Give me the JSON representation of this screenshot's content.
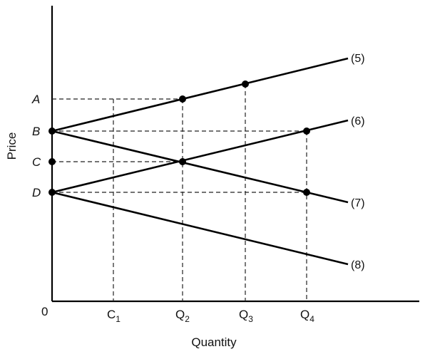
{
  "axes": {
    "x_title": "Quantity",
    "y_title": "Price",
    "origin": "0"
  },
  "price_levels": [
    {
      "id": "A",
      "label": "A"
    },
    {
      "id": "B",
      "label": "B"
    },
    {
      "id": "C",
      "label": "C"
    },
    {
      "id": "D",
      "label": "D"
    }
  ],
  "quantity_levels": [
    {
      "id": "Q1",
      "main": "C",
      "sub": "1"
    },
    {
      "id": "Q2",
      "main": "Q",
      "sub": "2"
    },
    {
      "id": "Q3",
      "main": "Q",
      "sub": "3"
    },
    {
      "id": "Q4",
      "main": "Q",
      "sub": "4"
    }
  ],
  "curves": [
    {
      "id": "5",
      "label": "(5)"
    },
    {
      "id": "6",
      "label": "(6)"
    },
    {
      "id": "7",
      "label": "(7)"
    },
    {
      "id": "8",
      "label": "(8)"
    }
  ]
}
